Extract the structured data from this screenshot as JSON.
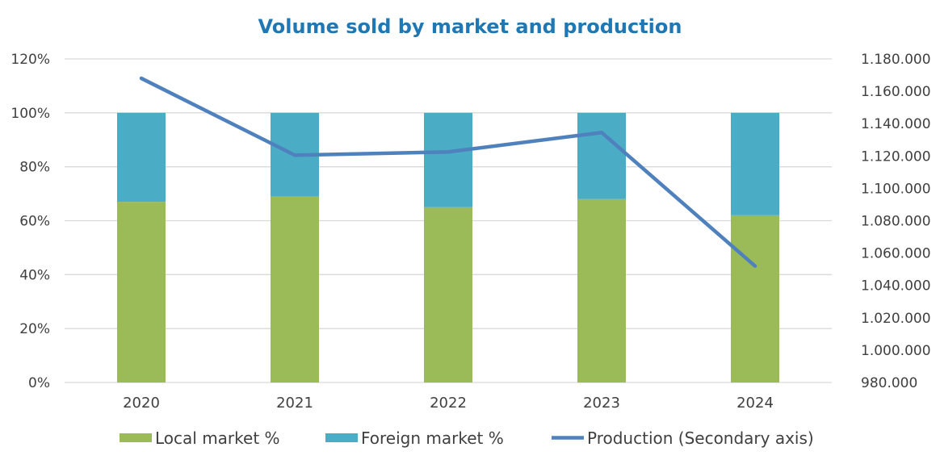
{
  "chart_data": {
    "type": "bar",
    "title": "Volume sold by market and production",
    "categories": [
      "2020",
      "2021",
      "2022",
      "2023",
      "2024"
    ],
    "stacked": true,
    "series": [
      {
        "name": "Local market %",
        "type": "bar",
        "axis": "primary",
        "color": "#9BBB59",
        "values": [
          0.67,
          0.69,
          0.65,
          0.68,
          0.62
        ]
      },
      {
        "name": "Foreign market %",
        "type": "bar",
        "axis": "primary",
        "color": "#4BACC6",
        "values": [
          0.33,
          0.31,
          0.35,
          0.32,
          0.38
        ]
      },
      {
        "name": "Production (Secondary axis)",
        "type": "line",
        "axis": "secondary",
        "color": "#4F81BD",
        "values": [
          1168000,
          1120500,
          1122500,
          1134500,
          1052000
        ]
      }
    ],
    "y_primary": {
      "lim": [
        0,
        1.2
      ],
      "ticks": [
        0,
        0.2,
        0.4,
        0.6,
        0.8,
        1.0,
        1.2
      ],
      "tick_labels": [
        "0%",
        "20%",
        "40%",
        "60%",
        "80%",
        "100%",
        "120%"
      ]
    },
    "y_secondary": {
      "lim": [
        980000,
        1180000
      ],
      "ticks": [
        980000,
        1000000,
        1020000,
        1040000,
        1060000,
        1080000,
        1100000,
        1120000,
        1140000,
        1160000,
        1180000
      ],
      "tick_labels": [
        "980.000",
        "1.000.000",
        "1.020.000",
        "1.040.000",
        "1.060.000",
        "1.080.000",
        "1.100.000",
        "1.120.000",
        "1.140.000",
        "1.160.000",
        "1.180.000"
      ]
    },
    "xlabel": "",
    "ylabel": "",
    "grid": true,
    "legend_position": "bottom"
  }
}
